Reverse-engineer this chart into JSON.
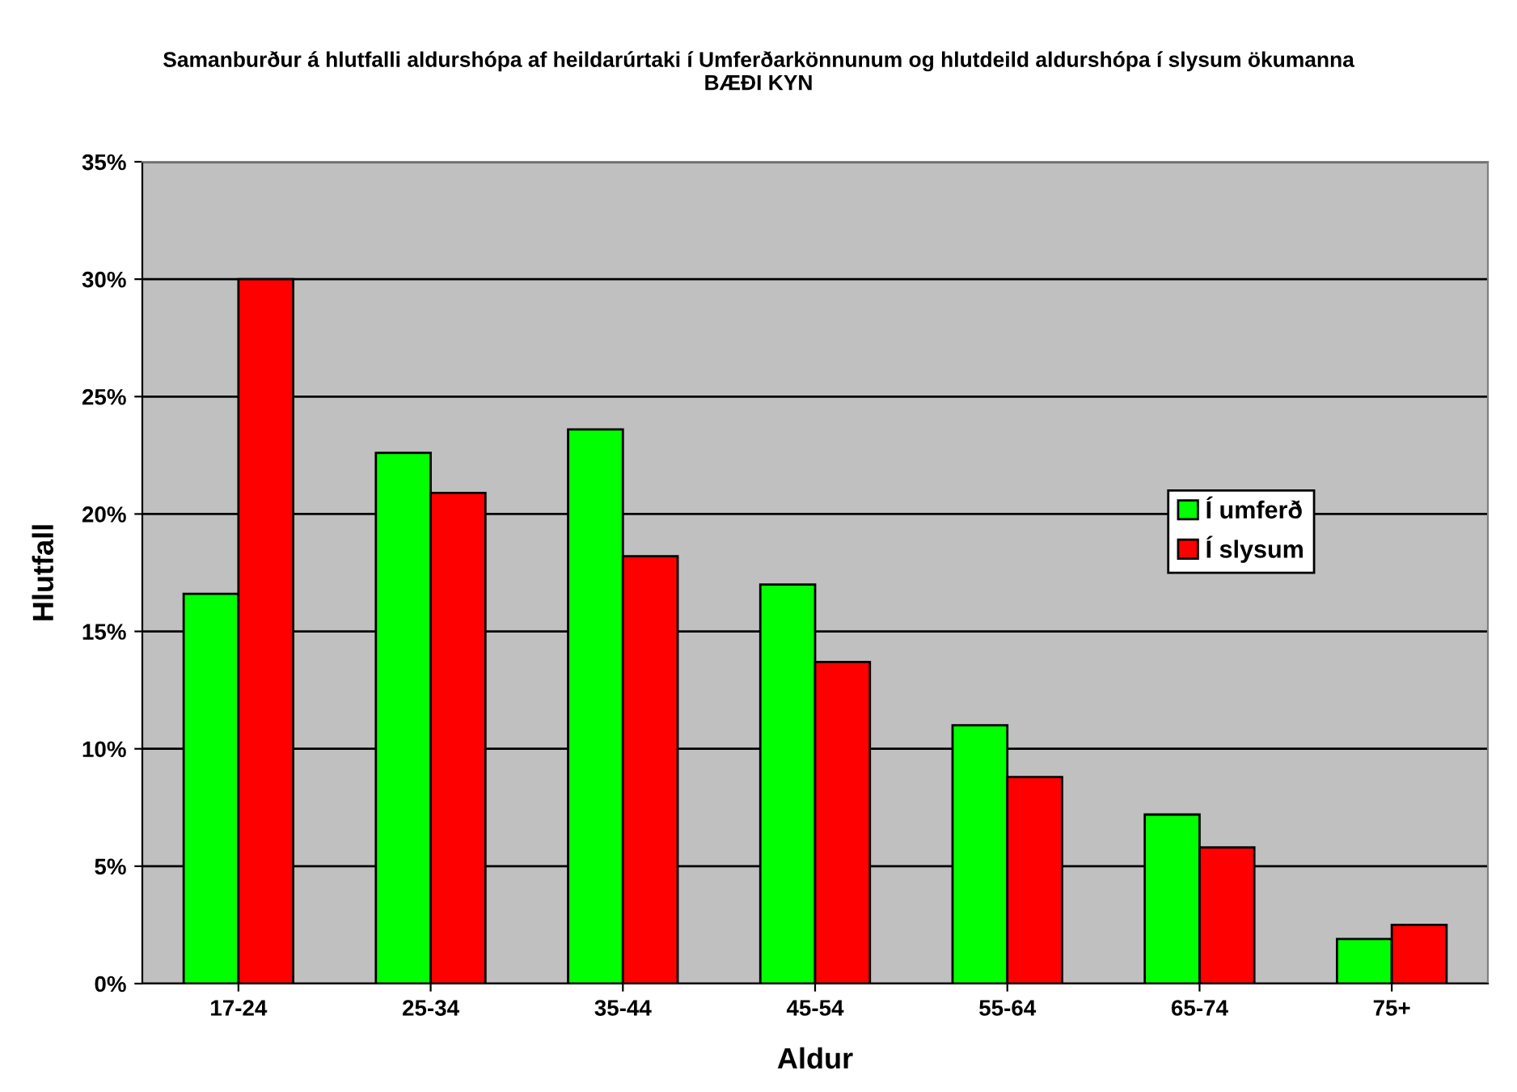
{
  "chart_data": {
    "type": "bar",
    "title": "Samanburður á hlutfalli aldurshópa af heildarúrtaki í Umferðarkönnunum og hlutdeild aldurshópa í slysum ökumanna\nBÆÐI KYN",
    "xlabel": "Aldur",
    "ylabel": "Hlutfall",
    "categories": [
      "17-24",
      "25-34",
      "35-44",
      "45-54",
      "55-64",
      "65-74",
      "75+"
    ],
    "series": [
      {
        "name": "Í umferð",
        "color": "#00ff00",
        "values": [
          16.6,
          22.6,
          23.6,
          17.0,
          11.0,
          7.2,
          1.9
        ]
      },
      {
        "name": "Í slysum",
        "color": "#ff0000",
        "values": [
          30.0,
          20.9,
          18.2,
          13.7,
          8.8,
          5.8,
          2.5
        ]
      }
    ],
    "ylim": [
      0,
      35
    ],
    "yticks": [
      {
        "value": 0,
        "label": "0%"
      },
      {
        "value": 5,
        "label": "5%"
      },
      {
        "value": 10,
        "label": "10%"
      },
      {
        "value": 15,
        "label": "15%"
      },
      {
        "value": 20,
        "label": "20%"
      },
      {
        "value": 25,
        "label": "25%"
      },
      {
        "value": 30,
        "label": "30%"
      },
      {
        "value": 35,
        "label": "35%"
      }
    ],
    "grid": "y",
    "legend": "right"
  }
}
